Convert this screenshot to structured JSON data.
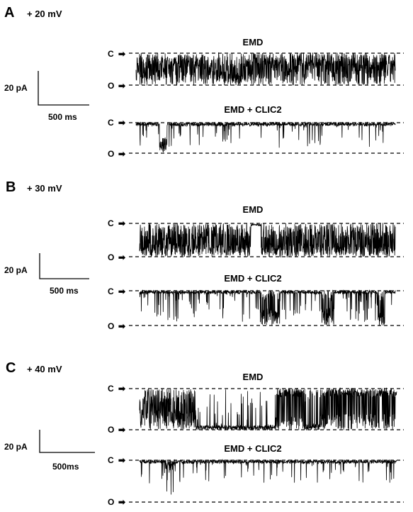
{
  "panels": [
    {
      "letter": "A",
      "voltage": "+ 20 mV",
      "scale_current": "20 pA",
      "scale_time": "500 ms",
      "traces": [
        {
          "title": "EMD",
          "closed_label": "C",
          "open_label": "O",
          "activity": "high-flicker"
        },
        {
          "title": "EMD + CLIC2",
          "closed_label": "C",
          "open_label": "O",
          "activity": "sparse-brief"
        }
      ]
    },
    {
      "letter": "B",
      "voltage": "+ 30 mV",
      "scale_current": "20 pA",
      "scale_time": "500 ms",
      "traces": [
        {
          "title": "EMD",
          "closed_label": "C",
          "open_label": "O",
          "activity": "full-open-bursts"
        },
        {
          "title": "EMD + CLIC2",
          "closed_label": "C",
          "open_label": "O",
          "activity": "moderate-brief"
        }
      ]
    },
    {
      "letter": "C",
      "voltage": "+ 40 mV",
      "scale_current": "20 pA",
      "scale_time": "500ms",
      "traces": [
        {
          "title": "EMD",
          "closed_label": "C",
          "open_label": "O",
          "activity": "long-open-dwells"
        },
        {
          "title": "EMD + CLIC2",
          "closed_label": "C",
          "open_label": "O",
          "activity": "sparse-partial"
        }
      ]
    }
  ],
  "arrow_glyph": "➡"
}
